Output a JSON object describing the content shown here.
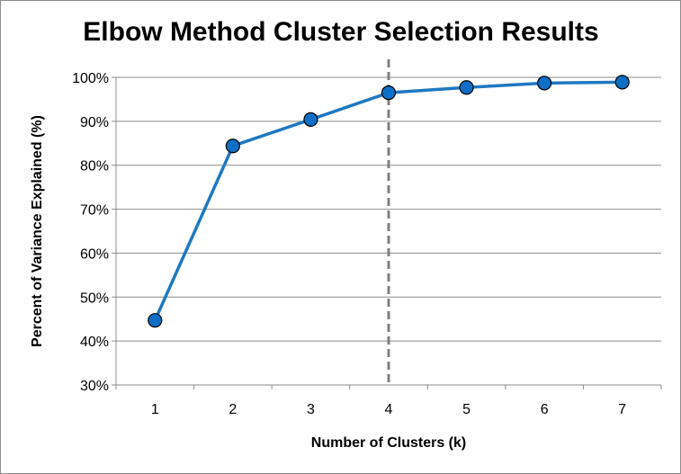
{
  "chart_data": {
    "type": "line",
    "title": "Elbow Method Cluster Selection Results",
    "xlabel": "Number of Clusters (k)",
    "ylabel": "Percent of Variance Explained (%)",
    "x": [
      1,
      2,
      3,
      4,
      5,
      6,
      7
    ],
    "x_tick_labels": [
      "1",
      "2",
      "3",
      "4",
      "5",
      "6",
      "7"
    ],
    "y_tick_labels": [
      "30%",
      "40%",
      "50%",
      "60%",
      "70%",
      "80%",
      "90%",
      "100%"
    ],
    "ylim": [
      0.3,
      1.0
    ],
    "y_ticks": [
      0.3,
      0.4,
      0.5,
      0.6,
      0.7,
      0.8,
      0.9,
      1.0
    ],
    "series": [
      {
        "values": [
          0.447,
          0.844,
          0.904,
          0.965,
          0.977,
          0.987,
          0.989
        ]
      }
    ],
    "reference_line": {
      "x": 4,
      "style": "dashed",
      "color": "#808080"
    },
    "grid": {
      "horizontal": true,
      "vertical": false
    },
    "legend": "none",
    "colors": {
      "line": "#1f78c1",
      "marker_fill": "#0f6fc6",
      "marker_edge": "#000000",
      "grid": "#8c8c8c"
    }
  }
}
